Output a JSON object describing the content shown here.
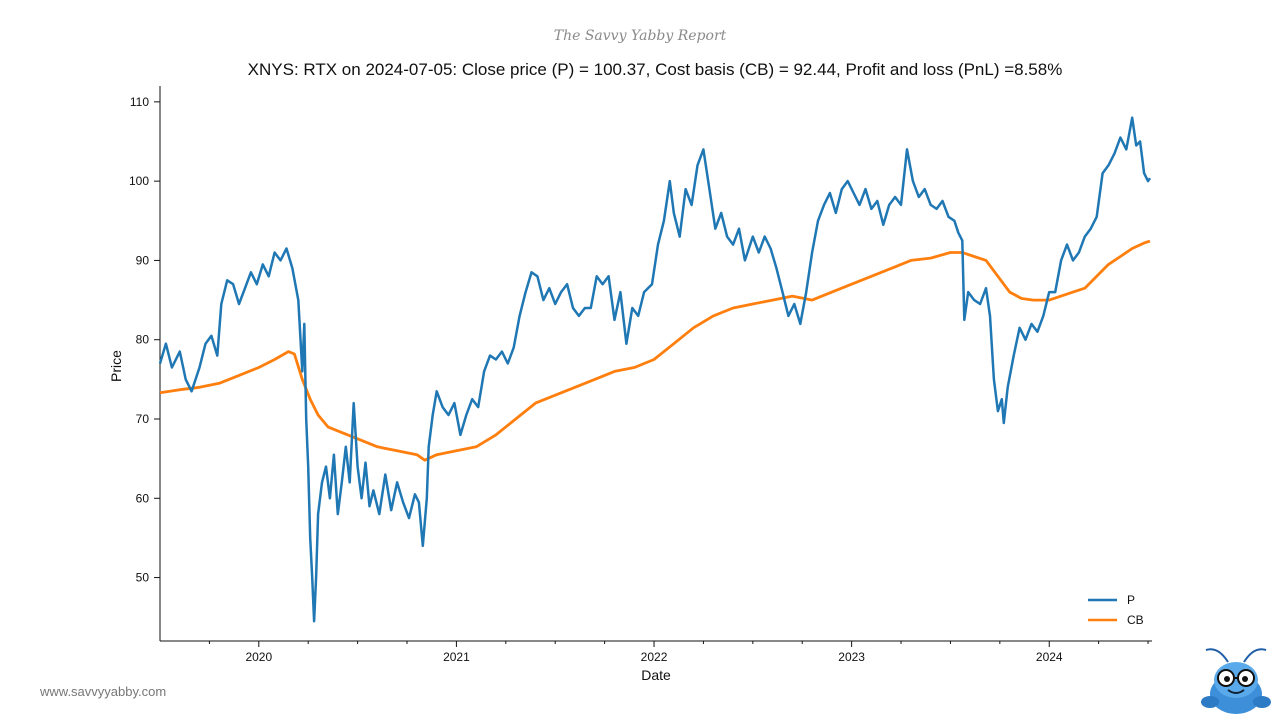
{
  "header": {
    "report_title": "The Savvy Yabby Report"
  },
  "footer": {
    "url": "www.savvyyabby.com"
  },
  "mascot": {
    "icon": "yabby-mascot-icon"
  },
  "chart_data": {
    "type": "line",
    "title": "XNYS: RTX on 2024-07-05: Close price (P) = 100.37, Cost basis (CB) = 92.44, Profit and loss (PnL) =8.58%",
    "xlabel": "Date",
    "ylabel": "Price",
    "xlim": [
      2019.5,
      2024.52
    ],
    "ylim": [
      42,
      112
    ],
    "yticks": [
      50,
      60,
      70,
      80,
      90,
      100,
      110
    ],
    "xticks": [
      2020,
      2021,
      2022,
      2023,
      2024
    ],
    "xtick_labels": [
      "2020",
      "2021",
      "2022",
      "2023",
      "2024"
    ],
    "legend": {
      "position": "bottom-right",
      "entries": [
        "P",
        "CB"
      ]
    },
    "colors": {
      "P": "#1f77b4",
      "CB": "#ff7f0e"
    },
    "series": [
      {
        "name": "P",
        "points": [
          [
            2019.5,
            77.0
          ],
          [
            2019.53,
            79.5
          ],
          [
            2019.56,
            76.5
          ],
          [
            2019.6,
            78.5
          ],
          [
            2019.63,
            75.0
          ],
          [
            2019.66,
            73.5
          ],
          [
            2019.7,
            76.5
          ],
          [
            2019.73,
            79.5
          ],
          [
            2019.76,
            80.5
          ],
          [
            2019.79,
            78.0
          ],
          [
            2019.81,
            84.5
          ],
          [
            2019.84,
            87.5
          ],
          [
            2019.87,
            87.0
          ],
          [
            2019.9,
            84.5
          ],
          [
            2019.93,
            86.5
          ],
          [
            2019.96,
            88.5
          ],
          [
            2019.99,
            87.0
          ],
          [
            2020.02,
            89.5
          ],
          [
            2020.05,
            88.0
          ],
          [
            2020.08,
            91.0
          ],
          [
            2020.11,
            90.0
          ],
          [
            2020.14,
            91.5
          ],
          [
            2020.17,
            89.0
          ],
          [
            2020.2,
            85.0
          ],
          [
            2020.22,
            76.0
          ],
          [
            2020.23,
            82.0
          ],
          [
            2020.24,
            70.0
          ],
          [
            2020.25,
            64.0
          ],
          [
            2020.26,
            55.0
          ],
          [
            2020.27,
            50.0
          ],
          [
            2020.28,
            44.5
          ],
          [
            2020.29,
            50.0
          ],
          [
            2020.3,
            58.0
          ],
          [
            2020.32,
            62.0
          ],
          [
            2020.34,
            64.0
          ],
          [
            2020.36,
            60.0
          ],
          [
            2020.38,
            65.5
          ],
          [
            2020.4,
            58.0
          ],
          [
            2020.42,
            62.0
          ],
          [
            2020.44,
            66.5
          ],
          [
            2020.46,
            62.0
          ],
          [
            2020.48,
            72.0
          ],
          [
            2020.5,
            64.0
          ],
          [
            2020.52,
            60.0
          ],
          [
            2020.54,
            64.5
          ],
          [
            2020.56,
            59.0
          ],
          [
            2020.58,
            61.0
          ],
          [
            2020.61,
            58.0
          ],
          [
            2020.64,
            63.0
          ],
          [
            2020.67,
            58.5
          ],
          [
            2020.7,
            62.0
          ],
          [
            2020.73,
            59.5
          ],
          [
            2020.76,
            57.5
          ],
          [
            2020.79,
            60.5
          ],
          [
            2020.81,
            59.5
          ],
          [
            2020.83,
            54.0
          ],
          [
            2020.85,
            60.0
          ],
          [
            2020.86,
            66.5
          ],
          [
            2020.88,
            70.5
          ],
          [
            2020.9,
            73.5
          ],
          [
            2020.93,
            71.5
          ],
          [
            2020.96,
            70.5
          ],
          [
            2020.99,
            72.0
          ],
          [
            2021.02,
            68.0
          ],
          [
            2021.05,
            70.5
          ],
          [
            2021.08,
            72.5
          ],
          [
            2021.11,
            71.5
          ],
          [
            2021.14,
            76.0
          ],
          [
            2021.17,
            78.0
          ],
          [
            2021.2,
            77.5
          ],
          [
            2021.23,
            78.5
          ],
          [
            2021.26,
            77.0
          ],
          [
            2021.29,
            79.0
          ],
          [
            2021.32,
            83.0
          ],
          [
            2021.35,
            86.0
          ],
          [
            2021.38,
            88.5
          ],
          [
            2021.41,
            88.0
          ],
          [
            2021.44,
            85.0
          ],
          [
            2021.47,
            86.5
          ],
          [
            2021.5,
            84.5
          ],
          [
            2021.53,
            86.0
          ],
          [
            2021.56,
            87.0
          ],
          [
            2021.59,
            84.0
          ],
          [
            2021.62,
            83.0
          ],
          [
            2021.65,
            84.0
          ],
          [
            2021.68,
            84.0
          ],
          [
            2021.71,
            88.0
          ],
          [
            2021.74,
            87.0
          ],
          [
            2021.77,
            88.0
          ],
          [
            2021.8,
            82.5
          ],
          [
            2021.83,
            86.0
          ],
          [
            2021.86,
            79.5
          ],
          [
            2021.89,
            84.0
          ],
          [
            2021.92,
            83.0
          ],
          [
            2021.95,
            86.0
          ],
          [
            2021.99,
            87.0
          ],
          [
            2022.02,
            92.0
          ],
          [
            2022.05,
            95.0
          ],
          [
            2022.08,
            100.0
          ],
          [
            2022.1,
            96.0
          ],
          [
            2022.13,
            93.0
          ],
          [
            2022.16,
            99.0
          ],
          [
            2022.19,
            97.0
          ],
          [
            2022.22,
            102.0
          ],
          [
            2022.25,
            104.0
          ],
          [
            2022.28,
            99.0
          ],
          [
            2022.31,
            94.0
          ],
          [
            2022.34,
            96.0
          ],
          [
            2022.37,
            93.0
          ],
          [
            2022.4,
            92.0
          ],
          [
            2022.43,
            94.0
          ],
          [
            2022.46,
            90.0
          ],
          [
            2022.5,
            93.0
          ],
          [
            2022.53,
            91.0
          ],
          [
            2022.56,
            93.0
          ],
          [
            2022.59,
            91.5
          ],
          [
            2022.62,
            89.0
          ],
          [
            2022.65,
            86.0
          ],
          [
            2022.68,
            83.0
          ],
          [
            2022.71,
            84.5
          ],
          [
            2022.74,
            82.0
          ],
          [
            2022.77,
            86.0
          ],
          [
            2022.8,
            91.0
          ],
          [
            2022.83,
            95.0
          ],
          [
            2022.86,
            97.0
          ],
          [
            2022.89,
            98.5
          ],
          [
            2022.92,
            96.0
          ],
          [
            2022.95,
            99.0
          ],
          [
            2022.98,
            100.0
          ],
          [
            2023.01,
            98.5
          ],
          [
            2023.04,
            97.0
          ],
          [
            2023.07,
            99.0
          ],
          [
            2023.1,
            96.5
          ],
          [
            2023.13,
            97.5
          ],
          [
            2023.16,
            94.5
          ],
          [
            2023.19,
            97.0
          ],
          [
            2023.22,
            98.0
          ],
          [
            2023.25,
            97.0
          ],
          [
            2023.28,
            104.0
          ],
          [
            2023.31,
            100.0
          ],
          [
            2023.34,
            98.0
          ],
          [
            2023.37,
            99.0
          ],
          [
            2023.4,
            97.0
          ],
          [
            2023.43,
            96.5
          ],
          [
            2023.46,
            97.5
          ],
          [
            2023.49,
            95.5
          ],
          [
            2023.52,
            95.0
          ],
          [
            2023.54,
            93.5
          ],
          [
            2023.56,
            92.5
          ],
          [
            2023.57,
            82.5
          ],
          [
            2023.59,
            86.0
          ],
          [
            2023.62,
            85.0
          ],
          [
            2023.65,
            84.5
          ],
          [
            2023.68,
            86.5
          ],
          [
            2023.7,
            83.0
          ],
          [
            2023.72,
            75.0
          ],
          [
            2023.74,
            71.0
          ],
          [
            2023.76,
            72.5
          ],
          [
            2023.77,
            69.5
          ],
          [
            2023.79,
            74.0
          ],
          [
            2023.82,
            78.0
          ],
          [
            2023.85,
            81.5
          ],
          [
            2023.88,
            80.0
          ],
          [
            2023.91,
            82.0
          ],
          [
            2023.94,
            81.0
          ],
          [
            2023.97,
            83.0
          ],
          [
            2024.0,
            86.0
          ],
          [
            2024.03,
            86.0
          ],
          [
            2024.06,
            90.0
          ],
          [
            2024.09,
            92.0
          ],
          [
            2024.12,
            90.0
          ],
          [
            2024.15,
            91.0
          ],
          [
            2024.18,
            93.0
          ],
          [
            2024.21,
            94.0
          ],
          [
            2024.24,
            95.5
          ],
          [
            2024.27,
            101.0
          ],
          [
            2024.3,
            102.0
          ],
          [
            2024.33,
            103.5
          ],
          [
            2024.36,
            105.5
          ],
          [
            2024.39,
            104.0
          ],
          [
            2024.42,
            108.0
          ],
          [
            2024.44,
            104.5
          ],
          [
            2024.46,
            105.0
          ],
          [
            2024.48,
            101.0
          ],
          [
            2024.5,
            100.0
          ],
          [
            2024.51,
            100.37
          ]
        ]
      },
      {
        "name": "CB",
        "points": [
          [
            2019.5,
            73.3
          ],
          [
            2019.6,
            73.7
          ],
          [
            2019.7,
            74.0
          ],
          [
            2019.8,
            74.5
          ],
          [
            2019.9,
            75.5
          ],
          [
            2020.0,
            76.5
          ],
          [
            2020.08,
            77.5
          ],
          [
            2020.15,
            78.5
          ],
          [
            2020.18,
            78.2
          ],
          [
            2020.22,
            75.0
          ],
          [
            2020.26,
            72.5
          ],
          [
            2020.3,
            70.5
          ],
          [
            2020.35,
            69.0
          ],
          [
            2020.4,
            68.5
          ],
          [
            2020.5,
            67.5
          ],
          [
            2020.6,
            66.5
          ],
          [
            2020.7,
            66.0
          ],
          [
            2020.8,
            65.5
          ],
          [
            2020.84,
            64.8
          ],
          [
            2020.9,
            65.5
          ],
          [
            2021.0,
            66.0
          ],
          [
            2021.1,
            66.5
          ],
          [
            2021.2,
            68.0
          ],
          [
            2021.3,
            70.0
          ],
          [
            2021.4,
            72.0
          ],
          [
            2021.5,
            73.0
          ],
          [
            2021.6,
            74.0
          ],
          [
            2021.7,
            75.0
          ],
          [
            2021.8,
            76.0
          ],
          [
            2021.9,
            76.5
          ],
          [
            2022.0,
            77.5
          ],
          [
            2022.1,
            79.5
          ],
          [
            2022.2,
            81.5
          ],
          [
            2022.3,
            83.0
          ],
          [
            2022.4,
            84.0
          ],
          [
            2022.5,
            84.5
          ],
          [
            2022.6,
            85.0
          ],
          [
            2022.7,
            85.5
          ],
          [
            2022.8,
            85.0
          ],
          [
            2022.9,
            86.0
          ],
          [
            2023.0,
            87.0
          ],
          [
            2023.1,
            88.0
          ],
          [
            2023.2,
            89.0
          ],
          [
            2023.3,
            90.0
          ],
          [
            2023.4,
            90.3
          ],
          [
            2023.5,
            91.0
          ],
          [
            2023.56,
            91.0
          ],
          [
            2023.62,
            90.5
          ],
          [
            2023.68,
            90.0
          ],
          [
            2023.74,
            88.0
          ],
          [
            2023.8,
            86.0
          ],
          [
            2023.86,
            85.2
          ],
          [
            2023.92,
            85.0
          ],
          [
            2024.0,
            85.0
          ],
          [
            2024.06,
            85.5
          ],
          [
            2024.12,
            86.0
          ],
          [
            2024.18,
            86.5
          ],
          [
            2024.24,
            88.0
          ],
          [
            2024.3,
            89.5
          ],
          [
            2024.36,
            90.5
          ],
          [
            2024.42,
            91.5
          ],
          [
            2024.48,
            92.2
          ],
          [
            2024.51,
            92.44
          ]
        ]
      }
    ]
  }
}
